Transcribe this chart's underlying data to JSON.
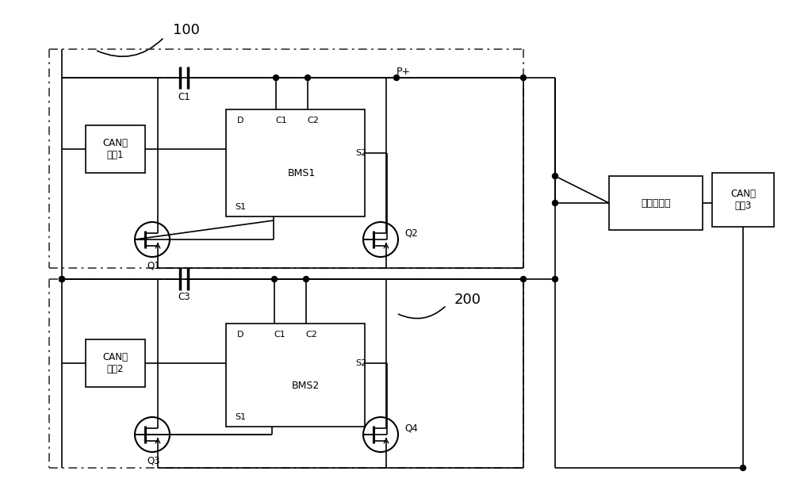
{
  "bg_color": "#ffffff",
  "label_100": "100",
  "label_200": "200",
  "label_pplus": "P+",
  "label_c1": "C1",
  "label_c3": "C3",
  "label_bms1": "BMS1",
  "label_bms2": "BMS2",
  "label_can1": "CAN收\n发器1",
  "label_can2": "CAN收\n发器2",
  "label_can3": "CAN收\n发器3",
  "label_controller": "整车控制器",
  "label_q1": "Q1",
  "label_q2": "Q2",
  "label_q3": "Q3",
  "label_q4": "Q4",
  "label_d": "D",
  "label_c1b": "C1",
  "label_c2b": "C2",
  "label_s1": "S1",
  "label_s2": "S2"
}
